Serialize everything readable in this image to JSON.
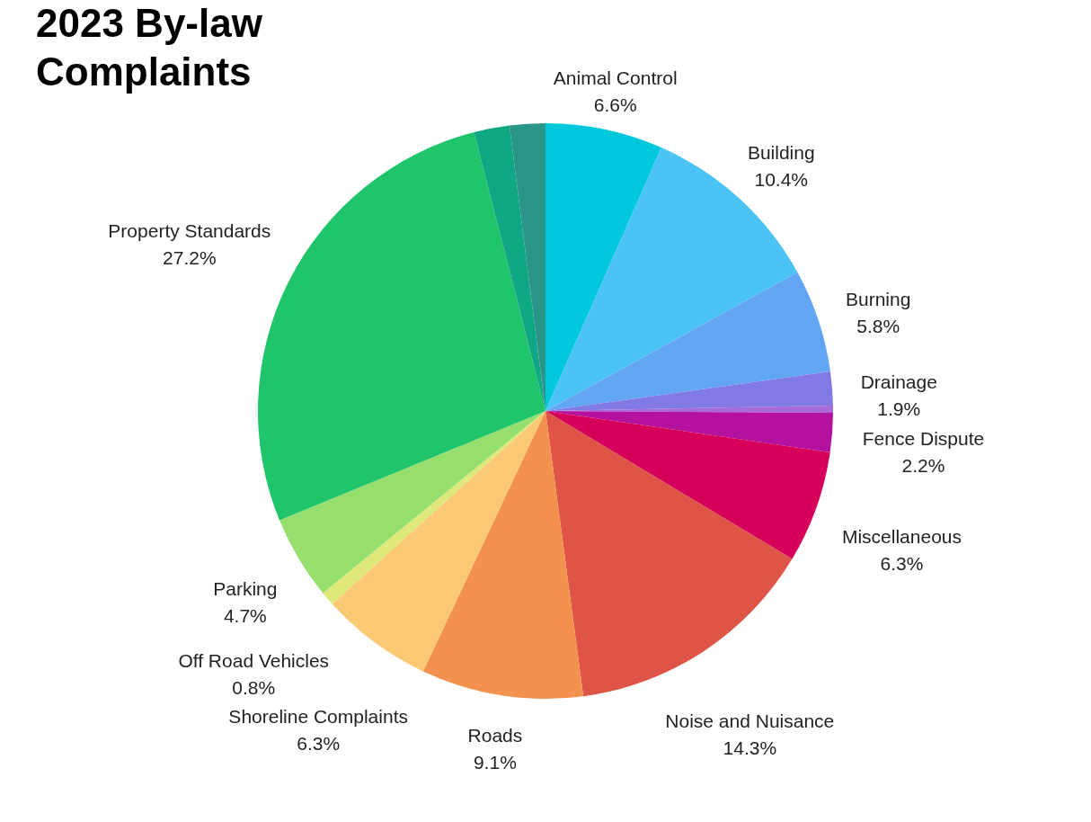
{
  "chart_data": {
    "type": "pie",
    "title": "2023 By-law Complaints",
    "categories": [
      "Animal Control",
      "Building",
      "Burning",
      "Drainage",
      null,
      "Fence Dispute",
      "Miscellaneous",
      "Noise and Nuisance",
      "Roads",
      "Shoreline Complaints",
      "Off Road Vehicles",
      "Parking",
      "Property Standards",
      null,
      null
    ],
    "values": [
      6.6,
      10.4,
      5.8,
      1.9,
      0.4,
      2.2,
      6.3,
      14.3,
      9.1,
      6.3,
      0.8,
      4.7,
      27.2,
      2.0,
      2.0
    ],
    "value_labels": [
      "6.6%",
      "10.4%",
      "5.8%",
      "1.9%",
      null,
      "2.2%",
      "6.3%",
      "14.3%",
      "9.1%",
      "6.3%",
      "0.8%",
      "4.7%",
      "27.2%",
      null,
      null
    ],
    "colors": [
      "#00c8dc",
      "#4cc3f5",
      "#62a6f3",
      "#8079e6",
      "#a66ad9",
      "#b4129e",
      "#d6005a",
      "#de5446",
      "#f3914e",
      "#fbc874",
      "#dfe97a",
      "#96df6e",
      "#1fc46b",
      "#10a884",
      "#2a9688"
    ]
  }
}
